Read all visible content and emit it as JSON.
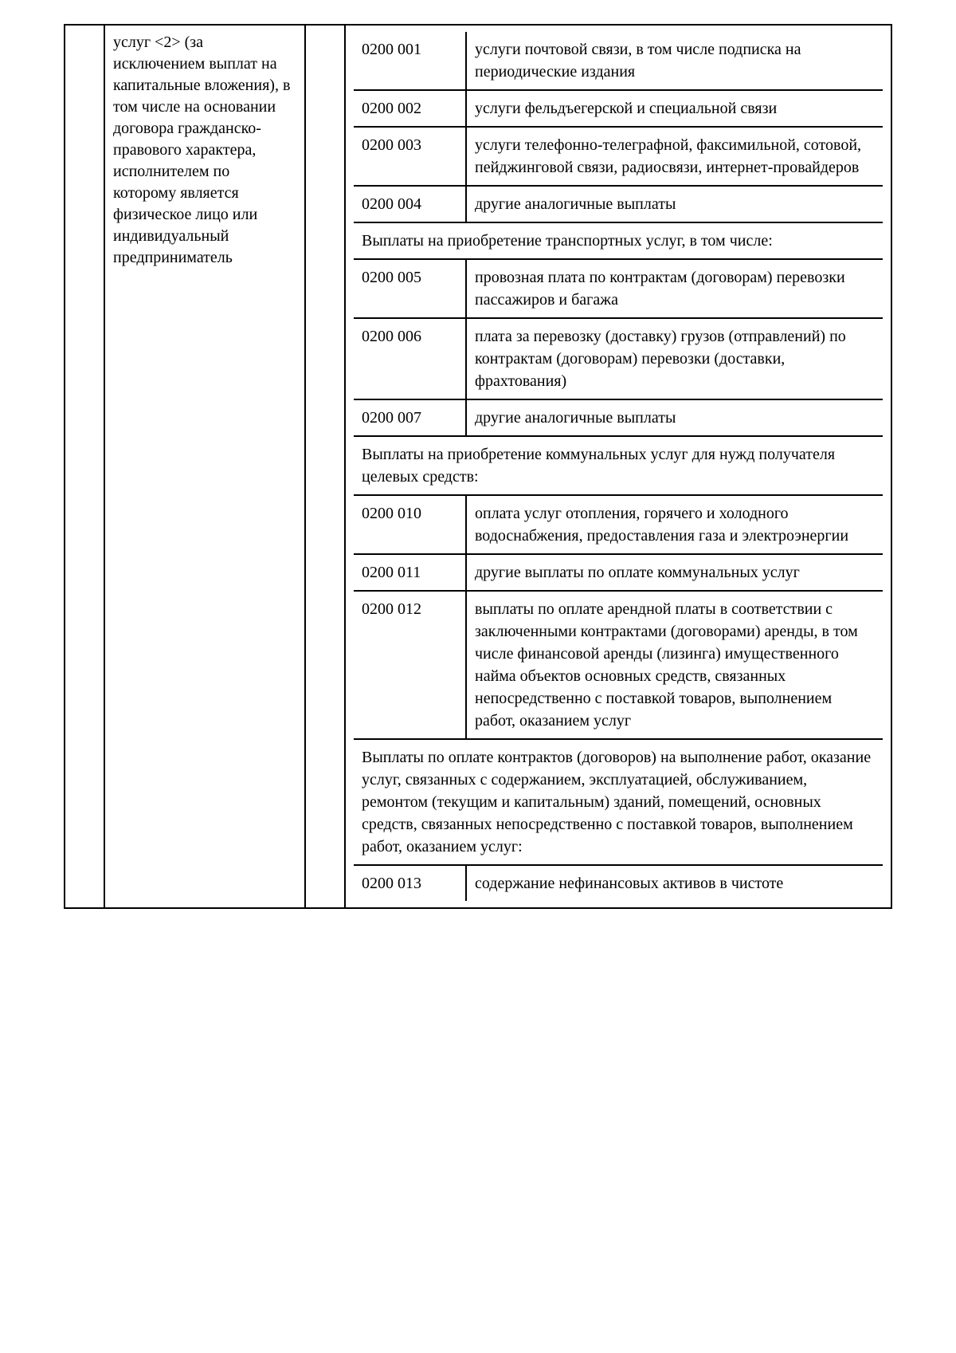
{
  "leftDescription": "услуг <2> (за исключением выплат на капитальные вложения), в том числе на основании договора гражданско-правового характера, исполнителем по которому является физическое лицо или индивидуальный предприниматель",
  "rows": [
    {
      "code": "0200 001",
      "text": "услуги почтовой связи, в том числе подписка на периодические издания"
    },
    {
      "code": "0200 002",
      "text": "услуги фельдъегерской и специальной связи"
    },
    {
      "code": "0200 003",
      "text": "услуги телефонно-телеграфной, факсимильной, сотовой, пейджинговой связи, радиосвязи, интернет-провайдеров"
    },
    {
      "code": "0200 004",
      "text": "другие аналогичные выплаты"
    },
    {
      "section": "Выплаты на приобретение транспортных услуг, в том числе:"
    },
    {
      "code": "0200 005",
      "text": "провозная плата по контрактам (договорам) перевозки пассажиров и багажа"
    },
    {
      "code": "0200 006",
      "text": "плата за перевозку (доставку) грузов (отправлений) по контрактам (договорам) перевозки (доставки, фрахтования)"
    },
    {
      "code": "0200 007",
      "text": "другие аналогичные выплаты"
    },
    {
      "section": "Выплаты на приобретение коммунальных услуг для нужд получателя целевых средств:"
    },
    {
      "code": "0200 010",
      "text": "оплата услуг отопления, горячего и холодного водоснабжения, предоставления газа и электроэнергии"
    },
    {
      "code": "0200 011",
      "text": "другие выплаты по оплате коммунальных услуг"
    },
    {
      "code": "0200 012",
      "text": "выплаты по оплате арендной платы в соответствии с заключенными контрактами (договорами) аренды, в том числе финансовой аренды (лизинга) имущественного найма объектов основных средств, связанных непосредственно с поставкой товаров, выполнением работ, оказанием услуг"
    },
    {
      "section": "Выплаты по оплате контрактов (договоров) на выполнение работ, оказание услуг, связанных с содержанием, эксплуатацией, обслуживанием, ремонтом (текущим и капитальным) зданий, помещений, основных средств, связанных непосредственно с поставкой товаров, выполнением работ, оказанием услуг:"
    },
    {
      "code": "0200 013",
      "text": "содержание нефинансовых активов в чистоте"
    }
  ]
}
